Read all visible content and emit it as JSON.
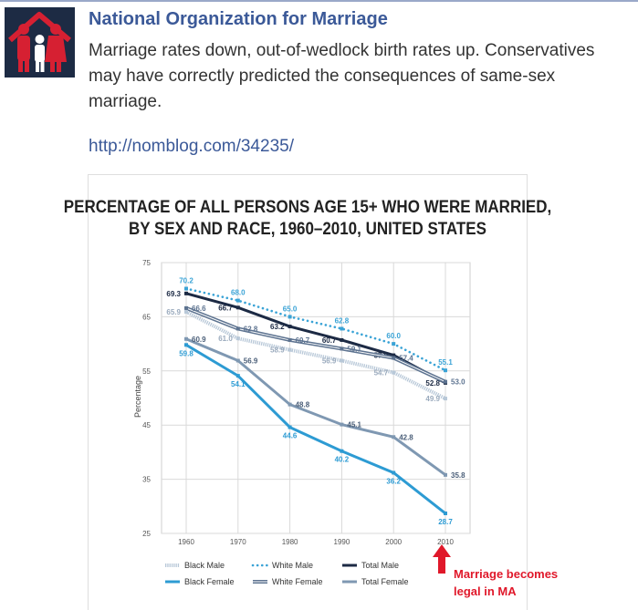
{
  "post": {
    "page_name": "National Organization for Marriage",
    "status_text": "Marriage rates down, out-of-wedlock birth rates up. Conservatives may have correctly predicted the consequences of same-sex marriage.",
    "link": "http://nomblog.com/34235/"
  },
  "annotation": {
    "line1": "Marriage becomes",
    "line2": "legal in MA",
    "color": "#e0182a"
  },
  "chart_data": {
    "type": "line",
    "title_line1": "PERCENTAGE OF ALL PERSONS AGE 15+ WHO WERE MARRIED,",
    "title_line2": "BY SEX AND RACE, 1960–2010, UNITED STATES",
    "ylabel": "Percentage",
    "xlabel": "",
    "x": [
      1960,
      1970,
      1980,
      1990,
      2000,
      2010
    ],
    "ylim": [
      25,
      75
    ],
    "yticks": [
      25,
      35,
      45,
      55,
      65,
      75
    ],
    "grid": true,
    "legend_position": "bottom",
    "series": [
      {
        "name": "White Male",
        "color": "#3aa3d6",
        "style": "dotted",
        "labelColor": "#3aa3d6",
        "labelPos": "above",
        "values": [
          70.2,
          68.0,
          65.0,
          62.8,
          60.0,
          55.1
        ]
      },
      {
        "name": "Total Male",
        "color": "#1c2a44",
        "style": "solid",
        "labelColor": "#1c2a44",
        "labelPos": "left",
        "values": [
          69.3,
          66.7,
          63.2,
          60.7,
          57.9,
          52.8
        ]
      },
      {
        "name": "White Female",
        "color": "#5d7390",
        "style": "double",
        "labelColor": "#5d7390",
        "labelPos": "right",
        "values": [
          66.6,
          62.8,
          60.7,
          59.1,
          57.4,
          53.0
        ]
      },
      {
        "name": "Black Male",
        "color": "#b8c8d8",
        "style": "hatched",
        "labelColor": "#9aaabd",
        "labelPos": "left",
        "values": [
          65.9,
          61.0,
          58.9,
          56.9,
          54.7,
          49.9
        ]
      },
      {
        "name": "Total Female",
        "color": "#7f98b2",
        "style": "solid",
        "labelColor": "#4a5e78",
        "labelPos": "right",
        "values": [
          60.9,
          56.9,
          48.8,
          45.1,
          42.8,
          35.8
        ]
      },
      {
        "name": "Black Female",
        "color": "#2d9bd3",
        "style": "solid",
        "labelColor": "#2d9bd3",
        "labelPos": "below",
        "values": [
          59.8,
          54.1,
          44.6,
          40.2,
          36.2,
          28.7
        ]
      }
    ],
    "legend": [
      [
        "Black Male",
        "White Male",
        "Total Male"
      ],
      [
        "Black Female",
        "White Female",
        "Total Female"
      ]
    ]
  }
}
